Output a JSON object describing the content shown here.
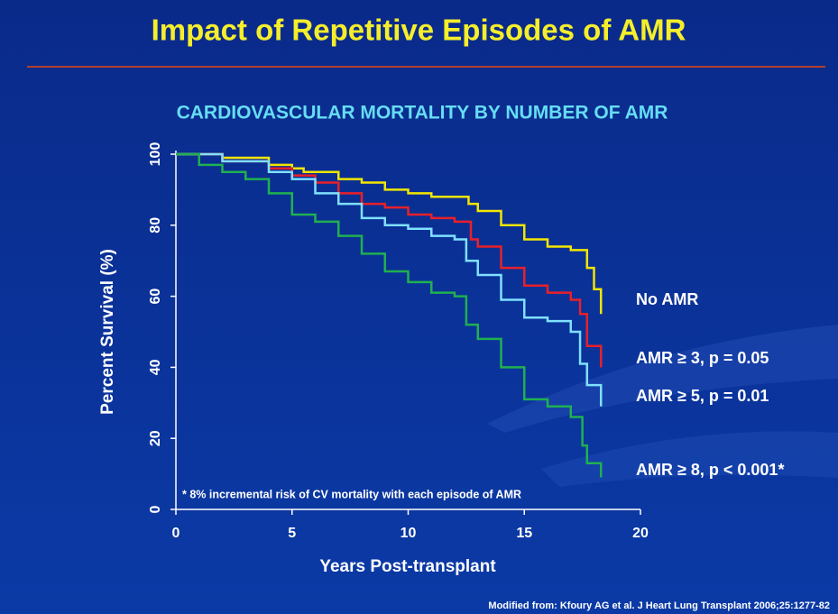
{
  "chart_data": {
    "type": "line",
    "step": "post",
    "title": "Impact of Repetitive Episodes of AMR",
    "subtitle": "CARDIOVASCULAR MORTALITY BY NUMBER OF AMR",
    "x_label": "Years Post-transplant",
    "y_label": "Percent Survival (%)",
    "xlim": [
      0,
      20
    ],
    "xticks": [
      0,
      5,
      10,
      15,
      20
    ],
    "ylim": [
      0,
      100
    ],
    "yticks": [
      0,
      20,
      40,
      60,
      80,
      100
    ],
    "annotation": "* 8% incremental risk of CV mortality with each episode of AMR",
    "source": "Modified from: Kfoury AG et al. J Heart Lung Transplant 2006;25:1277-82",
    "series": [
      {
        "name": "No AMR",
        "color": "#f2e600",
        "x": [
          0,
          2,
          4,
          5,
          5.5,
          7,
          8,
          9,
          10,
          11,
          12,
          12.6,
          13,
          14,
          15,
          16,
          17,
          17.7,
          18,
          18.3,
          18.3
        ],
        "values": [
          100,
          99,
          97,
          96,
          95,
          93,
          92,
          90,
          89,
          88,
          88,
          86,
          84,
          80,
          76,
          74,
          73,
          68,
          62,
          62,
          55
        ]
      },
      {
        "name": "AMR ≥ 3, p = 0.05",
        "color": "#e8202a",
        "x": [
          0,
          2,
          4,
          5,
          6,
          7,
          8,
          9,
          10,
          11,
          12,
          12.7,
          13,
          14,
          15,
          16,
          17,
          17.4,
          17.7,
          18.3,
          18.3
        ],
        "values": [
          100,
          98,
          96,
          94,
          92,
          89,
          86,
          85,
          83,
          82,
          81,
          76,
          74,
          68,
          63,
          61,
          59,
          55,
          46,
          46,
          40
        ]
      },
      {
        "name": "AMR ≥ 5, p = 0.01",
        "color": "#7fe0ff",
        "x": [
          0,
          2,
          4,
          5,
          6,
          7,
          8,
          9,
          10,
          11,
          12,
          12.5,
          13,
          14,
          15,
          16,
          17,
          17.4,
          17.7,
          18.3,
          18.3
        ],
        "values": [
          100,
          98,
          95,
          93,
          89,
          86,
          82,
          80,
          79,
          77,
          76,
          70,
          66,
          59,
          54,
          53,
          50,
          41,
          35,
          35,
          29
        ]
      },
      {
        "name": "AMR ≥ 8, p < 0.001*",
        "color": "#20b050",
        "x": [
          0,
          1,
          2,
          3,
          4,
          5,
          6,
          7,
          8,
          9,
          10,
          11,
          12,
          12.5,
          13,
          14,
          15,
          16,
          17,
          17.5,
          17.7,
          18.3,
          18.3
        ],
        "values": [
          100,
          97,
          95,
          93,
          89,
          83,
          81,
          77,
          72,
          67,
          64,
          61,
          60,
          52,
          48,
          40,
          31,
          29,
          26,
          18,
          13,
          13,
          9
        ]
      }
    ]
  }
}
